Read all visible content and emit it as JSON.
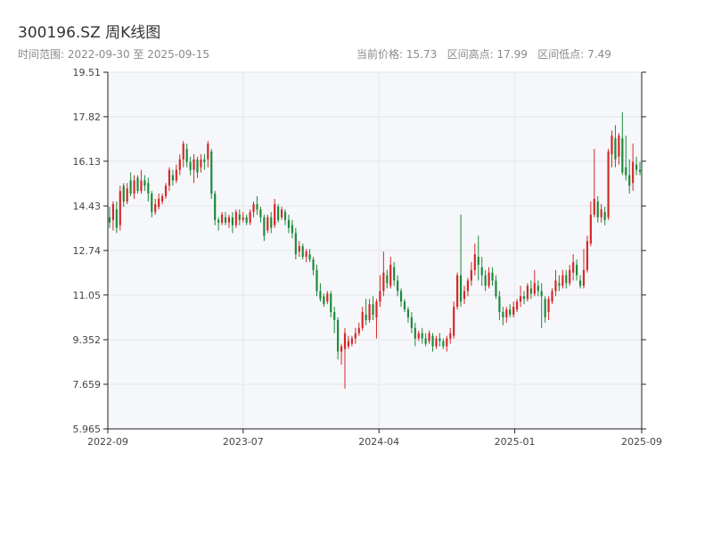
{
  "header": {
    "title": "300196.SZ 周K线图",
    "range": "时间范围: 2022-09-30 至 2025-09-15",
    "stats": "当前价格: 15.73   区间高点: 17.99   区间低点: 7.49"
  },
  "colors": {
    "up": "#d62728",
    "down": "#1a8a3a",
    "plot_bg": "#f6f7fa",
    "grid": "#e3e6ea",
    "axis": "#222222"
  },
  "chart_data": {
    "type": "candlestick",
    "title": "300196.SZ 周K线图",
    "x_range": [
      "2022-09-30",
      "2025-09-15"
    ],
    "ylim": [
      5.965,
      19.51
    ],
    "y_ticks": [
      "5.965",
      "7.659",
      "9.352",
      "11.05",
      "12.74",
      "14.43",
      "16.13",
      "17.82",
      "19.51"
    ],
    "x_ticks": [
      "2022-09",
      "2023-07",
      "2024-04",
      "2025-01",
      "2025-09"
    ],
    "grid": true,
    "current_price": 15.73,
    "range_high": 17.99,
    "range_low": 7.49,
    "candles": [
      [
        14.0,
        13.8,
        14.4,
        13.6
      ],
      [
        13.9,
        14.5,
        14.6,
        13.5
      ],
      [
        14.3,
        13.6,
        14.6,
        13.4
      ],
      [
        13.7,
        15.0,
        15.2,
        13.5
      ],
      [
        15.2,
        14.6,
        15.3,
        14.4
      ],
      [
        14.6,
        15.1,
        15.3,
        14.5
      ],
      [
        15.4,
        14.9,
        15.7,
        14.8
      ],
      [
        14.9,
        15.4,
        15.6,
        14.7
      ],
      [
        15.5,
        15.0,
        15.6,
        14.9
      ],
      [
        15.0,
        15.4,
        15.8,
        14.9
      ],
      [
        15.4,
        15.2,
        15.6,
        15.0
      ],
      [
        15.3,
        14.9,
        15.5,
        14.6
      ],
      [
        14.9,
        14.2,
        15.0,
        14.0
      ],
      [
        14.2,
        14.5,
        14.7,
        14.1
      ],
      [
        14.4,
        14.7,
        14.9,
        14.3
      ],
      [
        14.6,
        14.8,
        14.9,
        14.5
      ],
      [
        14.8,
        15.2,
        15.3,
        14.7
      ],
      [
        15.2,
        15.8,
        15.9,
        15.0
      ],
      [
        15.6,
        15.4,
        15.8,
        15.2
      ],
      [
        15.4,
        15.8,
        16.0,
        15.3
      ],
      [
        15.8,
        16.2,
        16.4,
        15.6
      ],
      [
        16.2,
        16.8,
        16.9,
        15.9
      ],
      [
        16.6,
        16.1,
        16.8,
        15.9
      ],
      [
        16.1,
        15.8,
        16.3,
        15.6
      ],
      [
        15.8,
        16.2,
        16.4,
        15.3
      ],
      [
        16.2,
        15.7,
        16.3,
        15.5
      ],
      [
        15.9,
        16.2,
        16.4,
        15.7
      ],
      [
        16.2,
        16.1,
        16.4,
        15.8
      ],
      [
        16.2,
        16.8,
        16.9,
        15.9
      ],
      [
        16.5,
        14.9,
        16.6,
        14.7
      ],
      [
        14.9,
        13.9,
        15.0,
        13.7
      ],
      [
        13.9,
        13.8,
        14.0,
        13.5
      ],
      [
        13.8,
        14.1,
        14.2,
        13.7
      ],
      [
        14.0,
        13.8,
        14.2,
        13.7
      ],
      [
        13.8,
        14.0,
        14.1,
        13.6
      ],
      [
        14.0,
        13.7,
        14.2,
        13.4
      ],
      [
        13.7,
        14.2,
        14.3,
        13.6
      ],
      [
        14.1,
        13.9,
        14.3,
        13.7
      ],
      [
        13.9,
        14.0,
        14.2,
        13.8
      ],
      [
        14.0,
        13.8,
        14.1,
        13.7
      ],
      [
        13.8,
        14.2,
        14.3,
        13.7
      ],
      [
        14.2,
        14.5,
        14.6,
        14.0
      ],
      [
        14.5,
        14.3,
        14.8,
        14.1
      ],
      [
        14.3,
        14.0,
        14.4,
        13.8
      ],
      [
        14.0,
        13.3,
        14.1,
        13.1
      ],
      [
        13.5,
        14.0,
        14.1,
        13.4
      ],
      [
        14.0,
        13.6,
        14.2,
        13.4
      ],
      [
        13.7,
        14.5,
        14.7,
        13.6
      ],
      [
        14.4,
        13.9,
        14.5,
        13.8
      ],
      [
        14.0,
        14.3,
        14.4,
        13.9
      ],
      [
        14.2,
        13.9,
        14.3,
        13.7
      ],
      [
        13.9,
        13.6,
        14.1,
        13.4
      ],
      [
        13.7,
        13.4,
        13.9,
        13.2
      ],
      [
        13.4,
        12.6,
        13.6,
        12.4
      ],
      [
        12.7,
        12.9,
        13.1,
        12.5
      ],
      [
        12.9,
        12.5,
        13.0,
        12.4
      ],
      [
        12.5,
        12.7,
        12.8,
        12.3
      ],
      [
        12.6,
        12.4,
        12.8,
        12.3
      ],
      [
        12.4,
        12.0,
        12.5,
        11.8
      ],
      [
        12.0,
        11.2,
        12.2,
        11.0
      ],
      [
        11.2,
        10.9,
        11.5,
        10.8
      ],
      [
        11.0,
        10.7,
        11.1,
        10.6
      ],
      [
        10.8,
        11.1,
        11.2,
        10.7
      ],
      [
        11.1,
        10.4,
        11.2,
        10.2
      ],
      [
        10.4,
        10.1,
        10.6,
        9.6
      ],
      [
        10.1,
        8.9,
        10.2,
        8.6
      ],
      [
        8.9,
        9.1,
        9.2,
        8.4
      ],
      [
        9.0,
        9.6,
        9.8,
        7.49
      ],
      [
        9.1,
        9.3,
        9.5,
        9.0
      ],
      [
        9.2,
        9.4,
        9.5,
        9.1
      ],
      [
        9.4,
        9.6,
        9.8,
        9.2
      ],
      [
        9.6,
        9.8,
        10.0,
        9.5
      ],
      [
        9.8,
        10.4,
        10.6,
        9.7
      ],
      [
        10.3,
        10.1,
        10.9,
        9.9
      ],
      [
        10.1,
        10.7,
        10.9,
        10.0
      ],
      [
        10.7,
        10.3,
        11.0,
        10.1
      ],
      [
        10.2,
        10.8,
        10.9,
        9.4
      ],
      [
        10.8,
        11.2,
        11.8,
        10.6
      ],
      [
        11.2,
        11.9,
        12.7,
        11.0
      ],
      [
        11.8,
        11.5,
        12.0,
        11.3
      ],
      [
        11.4,
        12.2,
        12.5,
        11.3
      ],
      [
        12.1,
        11.6,
        12.3,
        11.4
      ],
      [
        11.6,
        11.2,
        11.8,
        11.0
      ],
      [
        11.2,
        10.8,
        11.3,
        10.6
      ],
      [
        10.8,
        10.5,
        10.9,
        10.4
      ],
      [
        10.5,
        10.2,
        10.6,
        10.0
      ],
      [
        10.2,
        9.8,
        10.4,
        9.6
      ],
      [
        9.8,
        9.4,
        10.0,
        9.1
      ],
      [
        9.4,
        9.6,
        9.7,
        9.3
      ],
      [
        9.6,
        9.4,
        9.8,
        9.2
      ],
      [
        9.4,
        9.2,
        9.6,
        9.1
      ],
      [
        9.3,
        9.6,
        9.7,
        9.2
      ],
      [
        9.5,
        9.1,
        9.6,
        8.9
      ],
      [
        9.1,
        9.4,
        9.5,
        9.0
      ],
      [
        9.4,
        9.3,
        9.6,
        9.1
      ],
      [
        9.3,
        9.1,
        9.4,
        9.0
      ],
      [
        9.1,
        9.4,
        9.5,
        8.9
      ],
      [
        9.4,
        9.6,
        9.8,
        9.2
      ],
      [
        9.5,
        10.6,
        10.8,
        9.4
      ],
      [
        10.6,
        11.8,
        11.9,
        10.5
      ],
      [
        11.8,
        10.8,
        14.1,
        10.6
      ],
      [
        10.9,
        11.2,
        11.4,
        10.7
      ],
      [
        11.2,
        11.6,
        11.7,
        11.0
      ],
      [
        11.6,
        12.0,
        12.3,
        11.4
      ],
      [
        12.0,
        12.6,
        13.0,
        11.8
      ],
      [
        12.5,
        12.2,
        13.3,
        11.6
      ],
      [
        12.1,
        11.8,
        12.5,
        11.4
      ],
      [
        11.8,
        11.4,
        12.0,
        11.2
      ],
      [
        11.4,
        11.9,
        12.1,
        11.3
      ],
      [
        11.9,
        11.6,
        12.1,
        11.4
      ],
      [
        11.6,
        11.0,
        11.8,
        10.9
      ],
      [
        11.0,
        10.4,
        11.2,
        10.1
      ],
      [
        10.4,
        10.2,
        10.6,
        9.9
      ],
      [
        10.2,
        10.5,
        10.6,
        10.0
      ],
      [
        10.5,
        10.3,
        10.7,
        10.2
      ],
      [
        10.3,
        10.6,
        10.8,
        10.2
      ],
      [
        10.5,
        10.8,
        10.9,
        10.4
      ],
      [
        10.8,
        11.0,
        11.4,
        10.6
      ],
      [
        11.0,
        10.9,
        11.2,
        10.7
      ],
      [
        10.9,
        11.4,
        11.5,
        10.8
      ],
      [
        11.3,
        11.1,
        11.6,
        10.9
      ],
      [
        11.1,
        11.5,
        12.0,
        11.0
      ],
      [
        11.4,
        11.2,
        11.6,
        11.0
      ],
      [
        11.2,
        11.0,
        11.5,
        9.8
      ],
      [
        10.9,
        10.2,
        11.0,
        10.0
      ],
      [
        10.4,
        10.9,
        11.0,
        10.1
      ],
      [
        10.8,
        11.2,
        11.3,
        10.7
      ],
      [
        11.2,
        11.6,
        12.0,
        11.0
      ],
      [
        11.5,
        11.4,
        11.8,
        11.2
      ],
      [
        11.4,
        11.8,
        12.0,
        11.3
      ],
      [
        11.8,
        11.5,
        12.0,
        11.3
      ],
      [
        11.5,
        12.0,
        12.2,
        11.4
      ],
      [
        11.9,
        12.3,
        12.6,
        11.6
      ],
      [
        12.2,
        11.8,
        12.4,
        11.6
      ],
      [
        11.6,
        11.4,
        11.8,
        11.3
      ],
      [
        11.4,
        12.0,
        12.8,
        11.3
      ],
      [
        12.0,
        13.1,
        13.3,
        11.9
      ],
      [
        13.0,
        14.1,
        14.6,
        12.9
      ],
      [
        14.1,
        14.7,
        16.6,
        14.0
      ],
      [
        14.6,
        14.0,
        14.8,
        13.8
      ],
      [
        14.0,
        14.3,
        14.5,
        13.8
      ],
      [
        14.2,
        13.9,
        14.4,
        13.7
      ],
      [
        14.0,
        16.5,
        16.6,
        13.9
      ],
      [
        16.4,
        17.1,
        17.3,
        15.9
      ],
      [
        17.0,
        16.2,
        17.5,
        15.9
      ],
      [
        16.3,
        17.1,
        17.2,
        16.0
      ],
      [
        17.0,
        15.7,
        17.99,
        15.6
      ],
      [
        15.9,
        15.6,
        17.1,
        15.4
      ],
      [
        15.6,
        15.2,
        16.2,
        14.9
      ],
      [
        15.3,
        16.1,
        16.8,
        15.0
      ],
      [
        16.0,
        15.8,
        16.3,
        15.6
      ],
      [
        15.8,
        15.73,
        16.1,
        15.6
      ]
    ]
  }
}
